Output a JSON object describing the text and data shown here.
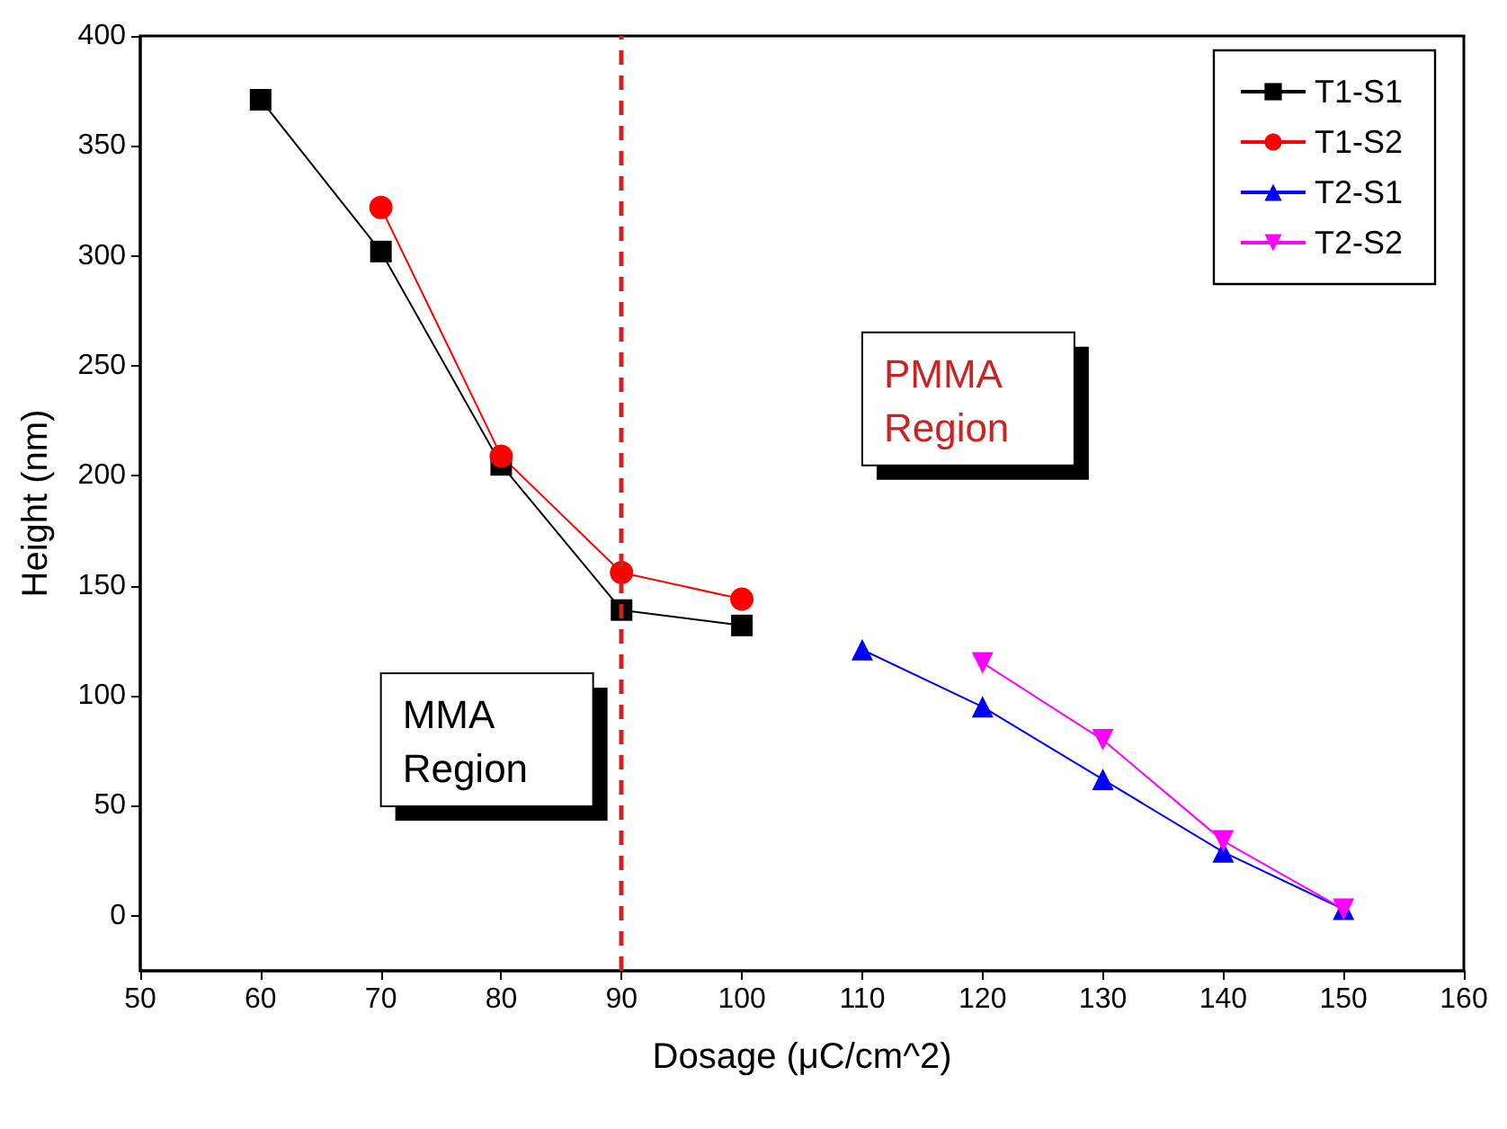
{
  "chart_data": {
    "type": "line",
    "xlabel": "Dosage (μC/cm^2)",
    "ylabel": "Height (nm)",
    "xlim": [
      50,
      160
    ],
    "xticks": [
      50,
      60,
      70,
      80,
      90,
      100,
      110,
      120,
      130,
      140,
      150,
      160
    ],
    "ylim": [
      -25,
      400
    ],
    "yticks": [
      0,
      50,
      100,
      150,
      200,
      250,
      300,
      350,
      400
    ],
    "grid": false,
    "legend": "top right",
    "line_style": "solid",
    "series": [
      {
        "name": "T1-S1",
        "color": "#000000",
        "marker": "square",
        "x": [
          60,
          70,
          80,
          90,
          100
        ],
        "values": [
          371,
          302,
          205,
          139,
          132
        ]
      },
      {
        "name": "T1-S2",
        "color": "#ff0000",
        "marker": "circle",
        "x": [
          70,
          80,
          90,
          100
        ],
        "values": [
          322,
          209,
          156,
          144
        ]
      },
      {
        "name": "T2-S1",
        "color": "#0000ff",
        "marker": "triangle",
        "x": [
          110,
          120,
          130,
          140,
          150
        ],
        "values": [
          121,
          95,
          62,
          29,
          3
        ]
      },
      {
        "name": "T2-S2",
        "color": "#ff00ff",
        "marker": "triangle-down",
        "x": [
          120,
          130,
          140,
          150
        ],
        "values": [
          115,
          80,
          34,
          3
        ]
      }
    ],
    "ref_lines": [
      {
        "axis": "x",
        "value": 90,
        "color": "#cc2222",
        "line_style": "dashed"
      }
    ],
    "annotations": [
      "MMA\nRegion",
      "PMMA\nRegion"
    ]
  }
}
